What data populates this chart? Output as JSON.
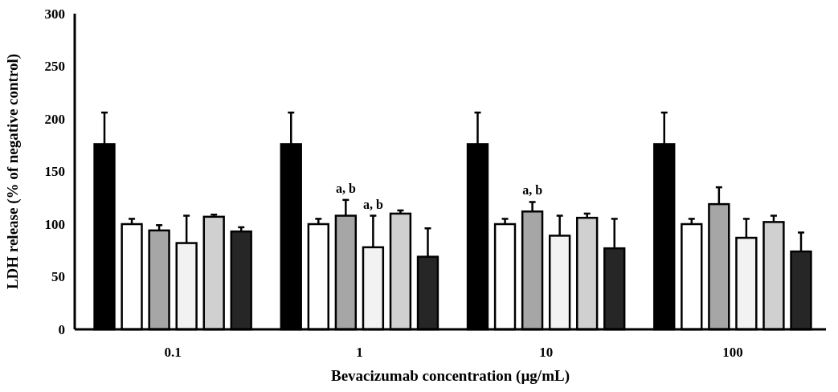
{
  "chart_data": {
    "type": "bar",
    "xlabel": "Bevacizumab concentration (µg/mL)",
    "ylabel": "LDH release (% of negative control)",
    "categories": [
      "0.1",
      "1",
      "10",
      "100"
    ],
    "series": [
      {
        "color": "#000000",
        "values": [
          176,
          176,
          176,
          176
        ],
        "errors": [
          30,
          30,
          30,
          30
        ]
      },
      {
        "color": "#ffffff",
        "values": [
          100,
          100,
          100,
          100
        ],
        "errors": [
          5,
          5,
          5,
          5
        ]
      },
      {
        "color": "#a6a6a6",
        "values": [
          94,
          108,
          112,
          119
        ],
        "errors": [
          5,
          15,
          9,
          16
        ]
      },
      {
        "color": "#f2f2f2",
        "values": [
          82,
          78,
          89,
          87
        ],
        "errors": [
          26,
          30,
          19,
          18
        ]
      },
      {
        "color": "#d0d0d0",
        "values": [
          107,
          110,
          106,
          102
        ],
        "errors": [
          2,
          3,
          4,
          6
        ]
      },
      {
        "color": "#262626",
        "values": [
          93,
          69,
          77,
          74
        ],
        "errors": [
          4,
          27,
          28,
          18
        ]
      }
    ],
    "ylim": [
      0,
      300
    ],
    "yticks": [
      0,
      50,
      100,
      150,
      200,
      250,
      300
    ],
    "grid": false,
    "annotations": [
      {
        "text": "a, b",
        "x": "1",
        "y": 108
      },
      {
        "text": "a, b",
        "x": "1",
        "y": 78
      },
      {
        "text": "a, b",
        "x": "10",
        "y": 112
      }
    ]
  }
}
